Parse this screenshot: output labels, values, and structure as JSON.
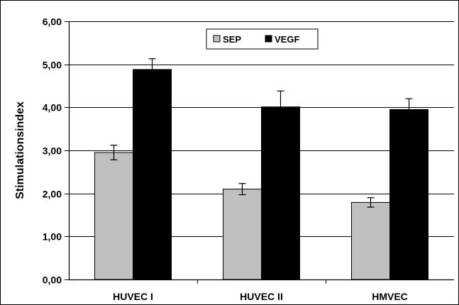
{
  "chart_data": {
    "type": "bar",
    "categories": [
      "HUVEC I",
      "HUVEC II",
      "HMVEC"
    ],
    "series": [
      {
        "name": "SEP",
        "color": "#c0c0c0",
        "values": [
          2.95,
          2.1,
          1.79
        ],
        "errors": [
          0.17,
          0.13,
          0.11
        ]
      },
      {
        "name": "VEGF",
        "color": "#000000",
        "values": [
          4.88,
          4.01,
          3.95
        ],
        "errors": [
          0.25,
          0.37,
          0.25
        ]
      }
    ],
    "title": "",
    "xlabel": "",
    "ylabel": "Stimulationsindex",
    "ylim": [
      0,
      6
    ],
    "yticks": [
      0,
      1,
      2,
      3,
      4,
      5,
      6
    ],
    "ytick_labels": [
      "0,00",
      "1,00",
      "2,00",
      "3,00",
      "4,00",
      "5,00",
      "6,00"
    ],
    "grid": true,
    "legend_position": "top-center"
  }
}
